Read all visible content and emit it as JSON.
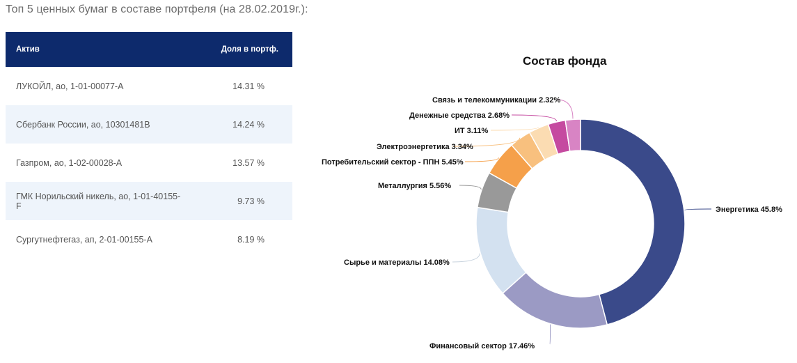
{
  "page": {
    "title": "Топ 5 ценных бумаг в составе портфеля (на 28.02.2019г.):"
  },
  "table": {
    "headers": {
      "asset": "Актив",
      "share": "Доля в портф."
    },
    "rows": [
      {
        "asset": "ЛУКОЙЛ, ао, 1-01-00077-A",
        "share": "14.31 %"
      },
      {
        "asset": "Сбербанк России, ао, 10301481B",
        "share": "14.24 %"
      },
      {
        "asset": "Газпром, ао, 1-02-00028-A",
        "share": "13.57 %"
      },
      {
        "asset": "ГМК Норильский никель, ао, 1-01-40155-F",
        "share": "9.73 %"
      },
      {
        "asset": "Сургутнефтегаз, ап, 2-01-00155-A",
        "share": "8.19 %"
      }
    ]
  },
  "chart_data": {
    "type": "pie",
    "variant": "donut",
    "title": "Состав фонда",
    "categories": [
      "Энергетика",
      "Финансовый сектор",
      "Сырье и материалы",
      "Металлургия",
      "Потребительский сектор - ППН",
      "Электроэнергетика",
      "ИТ",
      "Денежные средства",
      "Связь и телекоммуникации"
    ],
    "values": [
      45.8,
      17.46,
      14.08,
      5.56,
      5.45,
      3.34,
      3.11,
      2.68,
      2.32
    ],
    "labels": [
      "Энергетика 45.8%",
      "Финансовый сектор 17.46%",
      "Сырье и материалы 14.08%",
      "Металлургия 5.56%",
      "Потребительский сектор - ППН 5.45%",
      "Электроэнергетика 3.34%",
      "ИТ 3.11%",
      "Денежные средства 2.68%",
      "Связь и телекоммуникации 2.32%"
    ],
    "colors": [
      "#3a4a8a",
      "#9b9ac4",
      "#d3e1f0",
      "#999999",
      "#f5a04a",
      "#f8c07e",
      "#fbdcb2",
      "#c54aa0",
      "#d884c4"
    ],
    "start_angle": 0,
    "direction": "clockwise",
    "legend": "none"
  },
  "colors": {
    "table_header": "#0d2a6c",
    "row_alt": "#eef4fb"
  }
}
